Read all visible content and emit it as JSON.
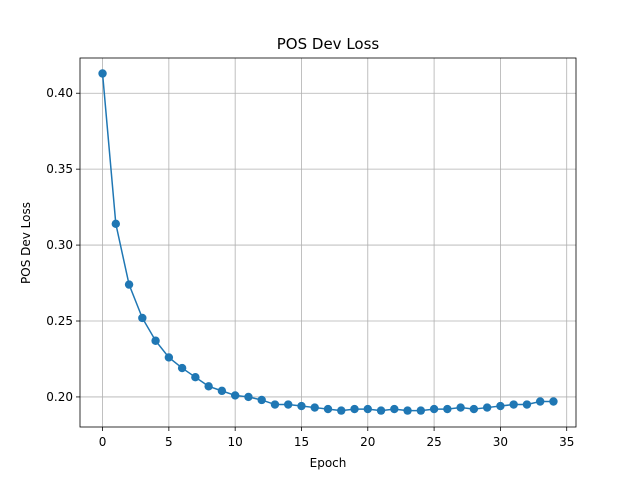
{
  "chart_data": {
    "type": "line",
    "title": "POS Dev Loss",
    "xlabel": "Epoch",
    "ylabel": "POS Dev Loss",
    "xlim": [
      -1.7,
      35.7
    ],
    "ylim": [
      0.1802,
      0.4232
    ],
    "x_ticks": [
      0,
      5,
      10,
      15,
      20,
      25,
      30,
      35
    ],
    "x_tick_labels": [
      "0",
      "5",
      "10",
      "15",
      "20",
      "25",
      "30",
      "35"
    ],
    "y_ticks": [
      0.2,
      0.25,
      0.3,
      0.35,
      0.4
    ],
    "y_tick_labels": [
      "0.20",
      "0.25",
      "0.30",
      "0.35",
      "0.40"
    ],
    "grid": true,
    "series": [
      {
        "color": "#1f77b4",
        "marker": "circle",
        "x": [
          0,
          1,
          2,
          3,
          4,
          5,
          6,
          7,
          8,
          9,
          10,
          11,
          12,
          13,
          14,
          15,
          16,
          17,
          18,
          19,
          20,
          21,
          22,
          23,
          24,
          25,
          26,
          27,
          28,
          29,
          30,
          31,
          32,
          33,
          34
        ],
        "y": [
          0.413,
          0.314,
          0.274,
          0.252,
          0.237,
          0.226,
          0.219,
          0.213,
          0.207,
          0.204,
          0.201,
          0.2,
          0.198,
          0.195,
          0.195,
          0.194,
          0.193,
          0.192,
          0.191,
          0.192,
          0.192,
          0.191,
          0.192,
          0.191,
          0.191,
          0.192,
          0.192,
          0.193,
          0.192,
          0.193,
          0.194,
          0.195,
          0.195,
          0.197,
          0.197
        ]
      }
    ]
  }
}
